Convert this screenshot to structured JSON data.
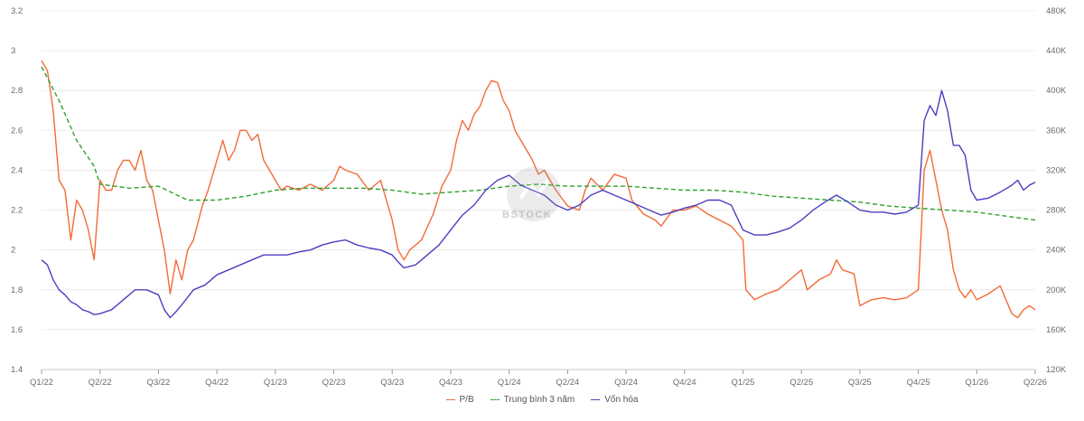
{
  "chart_data": {
    "type": "line",
    "x_labels": [
      "Q1/22",
      "Q2/22",
      "Q3/22",
      "Q4/22",
      "Q1/23",
      "Q2/23",
      "Q3/23",
      "Q4/23",
      "Q1/24",
      "Q2/24",
      "Q3/24",
      "Q4/24",
      "Q1/25",
      "Q2/25",
      "Q3/25",
      "Q4/25",
      "Q1/26",
      "Q2/26"
    ],
    "y_left": {
      "ticks": [
        "3.2",
        "3",
        "2.8",
        "2.6",
        "2.4",
        "2.2",
        "2",
        "1.8",
        "1.6",
        "1.4"
      ],
      "min": 1.4,
      "max": 3.2
    },
    "y_right": {
      "ticks": [
        "480K",
        "440K",
        "400K",
        "360K",
        "320K",
        "280K",
        "240K",
        "200K",
        "160K",
        "120K"
      ],
      "min": 120,
      "max": 480
    },
    "grid": true,
    "legend_position": "bottom-center",
    "series": [
      {
        "name": "P/B",
        "axis": "left",
        "color": "#f26b38",
        "style": "solid",
        "points": [
          [
            0,
            2.95
          ],
          [
            0.1,
            2.9
          ],
          [
            0.2,
            2.7
          ],
          [
            0.3,
            2.35
          ],
          [
            0.4,
            2.3
          ],
          [
            0.5,
            2.05
          ],
          [
            0.6,
            2.25
          ],
          [
            0.7,
            2.2
          ],
          [
            0.8,
            2.1
          ],
          [
            0.9,
            1.95
          ],
          [
            1.0,
            2.35
          ],
          [
            1.1,
            2.3
          ],
          [
            1.2,
            2.3
          ],
          [
            1.3,
            2.4
          ],
          [
            1.4,
            2.45
          ],
          [
            1.5,
            2.45
          ],
          [
            1.6,
            2.4
          ],
          [
            1.7,
            2.5
          ],
          [
            1.8,
            2.35
          ],
          [
            1.9,
            2.3
          ],
          [
            2.0,
            2.15
          ],
          [
            2.1,
            2.0
          ],
          [
            2.2,
            1.78
          ],
          [
            2.3,
            1.95
          ],
          [
            2.4,
            1.85
          ],
          [
            2.5,
            2.0
          ],
          [
            2.6,
            2.05
          ],
          [
            2.75,
            2.22
          ],
          [
            2.85,
            2.3
          ],
          [
            3.0,
            2.45
          ],
          [
            3.1,
            2.55
          ],
          [
            3.2,
            2.45
          ],
          [
            3.3,
            2.5
          ],
          [
            3.4,
            2.6
          ],
          [
            3.5,
            2.6
          ],
          [
            3.6,
            2.55
          ],
          [
            3.7,
            2.58
          ],
          [
            3.8,
            2.45
          ],
          [
            3.9,
            2.4
          ],
          [
            4.0,
            2.35
          ],
          [
            4.1,
            2.3
          ],
          [
            4.2,
            2.32
          ],
          [
            4.4,
            2.3
          ],
          [
            4.6,
            2.33
          ],
          [
            4.8,
            2.3
          ],
          [
            5.0,
            2.35
          ],
          [
            5.1,
            2.42
          ],
          [
            5.2,
            2.4
          ],
          [
            5.4,
            2.38
          ],
          [
            5.6,
            2.3
          ],
          [
            5.8,
            2.35
          ],
          [
            6.0,
            2.15
          ],
          [
            6.1,
            2.0
          ],
          [
            6.2,
            1.95
          ],
          [
            6.3,
            2.0
          ],
          [
            6.5,
            2.05
          ],
          [
            6.7,
            2.18
          ],
          [
            6.85,
            2.32
          ],
          [
            7.0,
            2.4
          ],
          [
            7.1,
            2.55
          ],
          [
            7.2,
            2.65
          ],
          [
            7.3,
            2.6
          ],
          [
            7.4,
            2.68
          ],
          [
            7.5,
            2.72
          ],
          [
            7.6,
            2.8
          ],
          [
            7.7,
            2.85
          ],
          [
            7.8,
            2.84
          ],
          [
            7.9,
            2.75
          ],
          [
            8.0,
            2.7
          ],
          [
            8.1,
            2.6
          ],
          [
            8.2,
            2.55
          ],
          [
            8.3,
            2.5
          ],
          [
            8.4,
            2.45
          ],
          [
            8.5,
            2.38
          ],
          [
            8.6,
            2.4
          ],
          [
            8.7,
            2.35
          ],
          [
            8.8,
            2.3
          ],
          [
            9.0,
            2.22
          ],
          [
            9.2,
            2.2
          ],
          [
            9.3,
            2.3
          ],
          [
            9.4,
            2.36
          ],
          [
            9.6,
            2.3
          ],
          [
            9.8,
            2.38
          ],
          [
            10.0,
            2.36
          ],
          [
            10.1,
            2.25
          ],
          [
            10.3,
            2.18
          ],
          [
            10.5,
            2.15
          ],
          [
            10.6,
            2.12
          ],
          [
            10.8,
            2.2
          ],
          [
            11.0,
            2.2
          ],
          [
            11.2,
            2.22
          ],
          [
            11.4,
            2.18
          ],
          [
            11.6,
            2.15
          ],
          [
            11.8,
            2.12
          ],
          [
            12.0,
            2.05
          ],
          [
            12.05,
            1.8
          ],
          [
            12.2,
            1.75
          ],
          [
            12.4,
            1.78
          ],
          [
            12.6,
            1.8
          ],
          [
            12.8,
            1.85
          ],
          [
            13.0,
            1.9
          ],
          [
            13.1,
            1.8
          ],
          [
            13.3,
            1.85
          ],
          [
            13.5,
            1.88
          ],
          [
            13.6,
            1.95
          ],
          [
            13.7,
            1.9
          ],
          [
            13.9,
            1.88
          ],
          [
            14.0,
            1.72
          ],
          [
            14.2,
            1.75
          ],
          [
            14.4,
            1.76
          ],
          [
            14.6,
            1.75
          ],
          [
            14.8,
            1.76
          ],
          [
            15.0,
            1.8
          ],
          [
            15.1,
            2.4
          ],
          [
            15.2,
            2.5
          ],
          [
            15.3,
            2.35
          ],
          [
            15.4,
            2.2
          ],
          [
            15.5,
            2.1
          ],
          [
            15.6,
            1.9
          ],
          [
            15.7,
            1.8
          ],
          [
            15.8,
            1.76
          ],
          [
            15.9,
            1.8
          ],
          [
            16.0,
            1.75
          ],
          [
            16.2,
            1.78
          ],
          [
            16.4,
            1.82
          ],
          [
            16.6,
            1.68
          ],
          [
            16.7,
            1.66
          ],
          [
            16.8,
            1.7
          ],
          [
            16.9,
            1.72
          ],
          [
            17.0,
            1.7
          ]
        ]
      },
      {
        "name": "Trung bình 3 năm",
        "axis": "left",
        "color": "#2ea12e",
        "style": "dashed",
        "points": [
          [
            0,
            2.92
          ],
          [
            0.3,
            2.75
          ],
          [
            0.6,
            2.55
          ],
          [
            0.9,
            2.42
          ],
          [
            1.0,
            2.33
          ],
          [
            1.5,
            2.31
          ],
          [
            2.0,
            2.32
          ],
          [
            2.5,
            2.25
          ],
          [
            3.0,
            2.25
          ],
          [
            3.5,
            2.27
          ],
          [
            4.0,
            2.3
          ],
          [
            4.5,
            2.31
          ],
          [
            5.0,
            2.31
          ],
          [
            5.5,
            2.31
          ],
          [
            6.0,
            2.3
          ],
          [
            6.5,
            2.28
          ],
          [
            7.0,
            2.29
          ],
          [
            7.5,
            2.3
          ],
          [
            8.0,
            2.32
          ],
          [
            8.5,
            2.33
          ],
          [
            9.0,
            2.32
          ],
          [
            9.5,
            2.32
          ],
          [
            10.0,
            2.32
          ],
          [
            10.5,
            2.31
          ],
          [
            11.0,
            2.3
          ],
          [
            11.5,
            2.3
          ],
          [
            12.0,
            2.29
          ],
          [
            12.5,
            2.27
          ],
          [
            13.0,
            2.26
          ],
          [
            13.5,
            2.25
          ],
          [
            14.0,
            2.24
          ],
          [
            14.5,
            2.22
          ],
          [
            15.0,
            2.21
          ],
          [
            15.5,
            2.2
          ],
          [
            16.0,
            2.19
          ],
          [
            16.5,
            2.17
          ],
          [
            17.0,
            2.15
          ]
        ]
      },
      {
        "name": "Vốn hóa",
        "axis": "right",
        "color": "#4b3fbf",
        "style": "solid",
        "points": [
          [
            0,
            230
          ],
          [
            0.1,
            225
          ],
          [
            0.2,
            210
          ],
          [
            0.3,
            200
          ],
          [
            0.4,
            195
          ],
          [
            0.5,
            188
          ],
          [
            0.6,
            185
          ],
          [
            0.7,
            180
          ],
          [
            0.8,
            178
          ],
          [
            0.9,
            175
          ],
          [
            1.0,
            176
          ],
          [
            1.2,
            180
          ],
          [
            1.4,
            190
          ],
          [
            1.6,
            200
          ],
          [
            1.8,
            200
          ],
          [
            2.0,
            195
          ],
          [
            2.1,
            180
          ],
          [
            2.2,
            172
          ],
          [
            2.3,
            178
          ],
          [
            2.4,
            185
          ],
          [
            2.6,
            200
          ],
          [
            2.8,
            205
          ],
          [
            3.0,
            215
          ],
          [
            3.2,
            220
          ],
          [
            3.4,
            225
          ],
          [
            3.6,
            230
          ],
          [
            3.8,
            235
          ],
          [
            4.0,
            235
          ],
          [
            4.2,
            235
          ],
          [
            4.4,
            238
          ],
          [
            4.6,
            240
          ],
          [
            4.8,
            245
          ],
          [
            5.0,
            248
          ],
          [
            5.2,
            250
          ],
          [
            5.4,
            245
          ],
          [
            5.6,
            242
          ],
          [
            5.8,
            240
          ],
          [
            6.0,
            235
          ],
          [
            6.1,
            228
          ],
          [
            6.2,
            222
          ],
          [
            6.4,
            225
          ],
          [
            6.6,
            235
          ],
          [
            6.8,
            245
          ],
          [
            7.0,
            260
          ],
          [
            7.2,
            275
          ],
          [
            7.4,
            285
          ],
          [
            7.6,
            300
          ],
          [
            7.8,
            310
          ],
          [
            8.0,
            315
          ],
          [
            8.2,
            305
          ],
          [
            8.4,
            300
          ],
          [
            8.6,
            295
          ],
          [
            8.8,
            285
          ],
          [
            9.0,
            280
          ],
          [
            9.2,
            285
          ],
          [
            9.4,
            295
          ],
          [
            9.6,
            300
          ],
          [
            9.8,
            295
          ],
          [
            10.0,
            290
          ],
          [
            10.2,
            285
          ],
          [
            10.4,
            280
          ],
          [
            10.6,
            275
          ],
          [
            10.8,
            278
          ],
          [
            11.0,
            282
          ],
          [
            11.2,
            285
          ],
          [
            11.4,
            290
          ],
          [
            11.6,
            290
          ],
          [
            11.8,
            285
          ],
          [
            12.0,
            260
          ],
          [
            12.2,
            255
          ],
          [
            12.4,
            255
          ],
          [
            12.6,
            258
          ],
          [
            12.8,
            262
          ],
          [
            13.0,
            270
          ],
          [
            13.2,
            280
          ],
          [
            13.4,
            288
          ],
          [
            13.6,
            295
          ],
          [
            13.8,
            288
          ],
          [
            14.0,
            280
          ],
          [
            14.2,
            278
          ],
          [
            14.4,
            278
          ],
          [
            14.6,
            276
          ],
          [
            14.8,
            278
          ],
          [
            15.0,
            285
          ],
          [
            15.1,
            370
          ],
          [
            15.2,
            385
          ],
          [
            15.3,
            375
          ],
          [
            15.4,
            400
          ],
          [
            15.5,
            380
          ],
          [
            15.6,
            345
          ],
          [
            15.7,
            345
          ],
          [
            15.8,
            335
          ],
          [
            15.9,
            300
          ],
          [
            16.0,
            290
          ],
          [
            16.2,
            292
          ],
          [
            16.4,
            298
          ],
          [
            16.6,
            305
          ],
          [
            16.7,
            310
          ],
          [
            16.8,
            300
          ],
          [
            16.9,
            305
          ],
          [
            17.0,
            308
          ]
        ]
      }
    ]
  },
  "watermark": {
    "text": "BSTOCK"
  }
}
